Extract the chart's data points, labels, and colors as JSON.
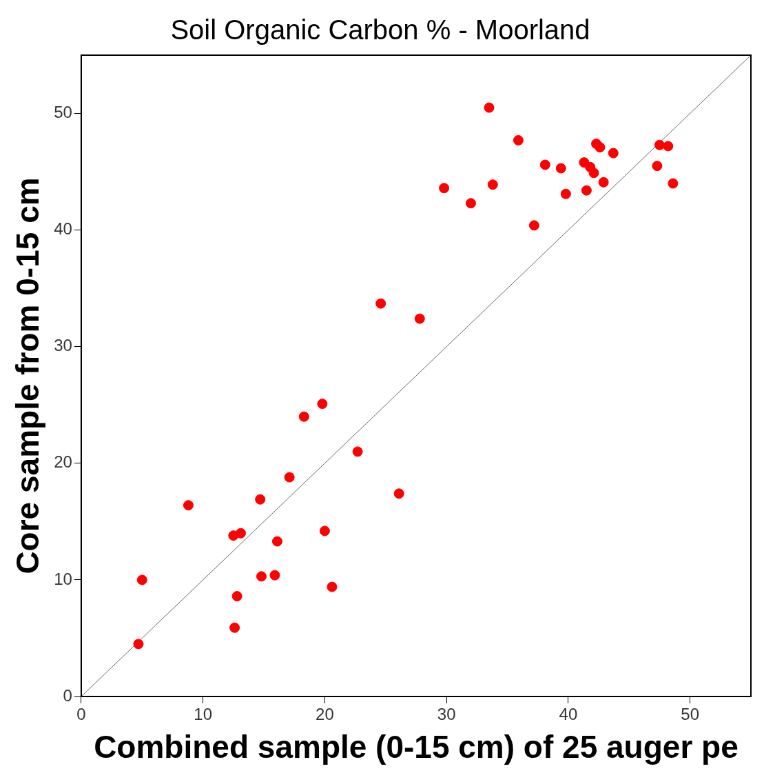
{
  "chart_data": {
    "type": "scatter",
    "title": "Soil Organic Carbon % - Moorland",
    "xlabel": "Combined sample (0-15 cm) of 25 auger pe",
    "ylabel": "Core sample from 0-15 cm",
    "xlim": [
      0,
      55
    ],
    "ylim": [
      0,
      55
    ],
    "xticks": [
      0,
      10,
      20,
      30,
      40,
      50
    ],
    "yticks": [
      0,
      10,
      20,
      30,
      40,
      50
    ],
    "grid": false,
    "legend": false,
    "marker": "circle",
    "series": [
      {
        "type": "scatter",
        "color": "#ff0000",
        "x": [
          4.7,
          5.0,
          8.8,
          12.5,
          13.1,
          12.6,
          12.8,
          14.7,
          14.8,
          15.9,
          16.1,
          17.1,
          18.3,
          19.8,
          20.0,
          20.6,
          22.7,
          24.6,
          26.1,
          27.8,
          29.8,
          32.0,
          33.5,
          33.8,
          35.9,
          37.2,
          38.1,
          39.4,
          39.8,
          41.3,
          41.5,
          41.8,
          42.1,
          42.3,
          42.6,
          42.9,
          43.7,
          47.3,
          47.5,
          48.2,
          48.6
        ],
        "values": [
          4.5,
          10.0,
          16.4,
          13.8,
          14.0,
          5.9,
          8.6,
          16.9,
          10.3,
          10.4,
          13.3,
          18.8,
          24.0,
          25.1,
          14.2,
          9.4,
          21.0,
          33.7,
          17.4,
          32.4,
          43.6,
          42.3,
          50.5,
          43.9,
          47.7,
          40.4,
          45.6,
          45.3,
          43.1,
          45.8,
          43.4,
          45.4,
          44.9,
          47.4,
          47.1,
          44.1,
          46.6,
          45.5,
          47.3,
          47.2,
          44.0
        ]
      },
      {
        "type": "line",
        "color": "#666666",
        "x": [
          0,
          55
        ],
        "values": [
          0,
          55
        ],
        "marker": "none",
        "line_style": "solid"
      }
    ]
  }
}
